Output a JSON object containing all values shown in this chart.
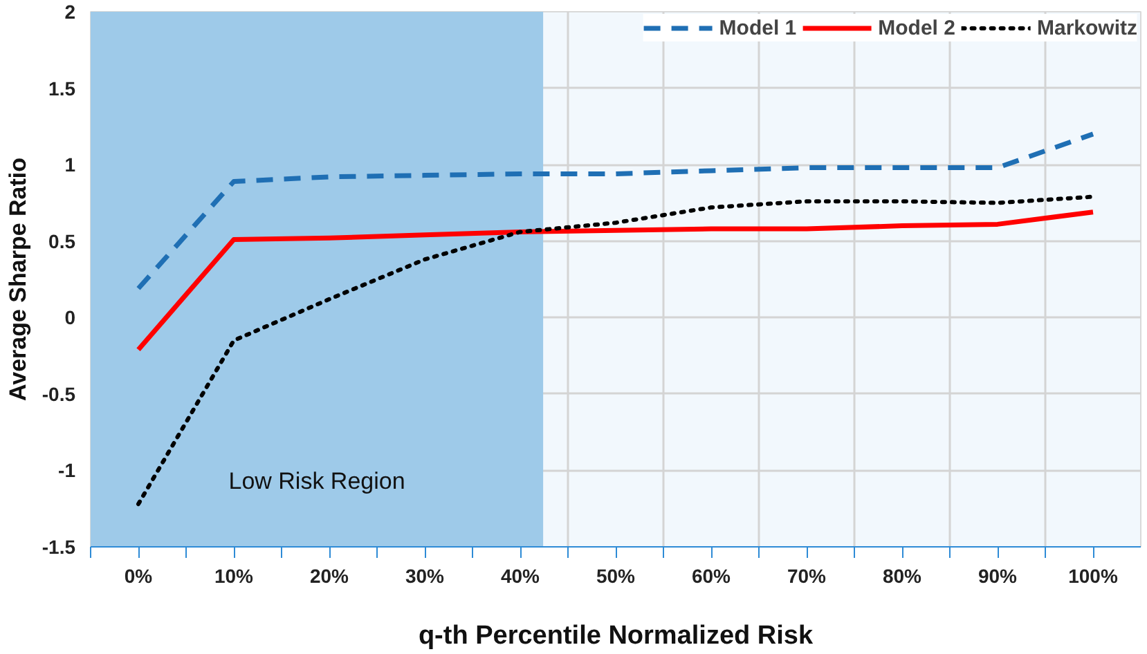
{
  "chart_data": {
    "type": "line",
    "xlabel": "q-th Percentile Normalized Risk",
    "ylabel": "Average Sharpe Ratio",
    "x": [
      0,
      10,
      20,
      30,
      40,
      50,
      60,
      70,
      80,
      90,
      100
    ],
    "xlim": [
      -5,
      105
    ],
    "xticks": [
      {
        "value": 0,
        "label": "0%"
      },
      {
        "value": 10,
        "label": "10%"
      },
      {
        "value": 20,
        "label": "20%"
      },
      {
        "value": 30,
        "label": "30%"
      },
      {
        "value": 40,
        "label": "40%"
      },
      {
        "value": 50,
        "label": "50%"
      },
      {
        "value": 60,
        "label": "60%"
      },
      {
        "value": 70,
        "label": "70%"
      },
      {
        "value": 80,
        "label": "80%"
      },
      {
        "value": 90,
        "label": "90%"
      },
      {
        "value": 100,
        "label": "100%"
      },
      {
        "value": -5,
        "label": null
      },
      {
        "value": 5,
        "label": null
      },
      {
        "value": 15,
        "label": null
      },
      {
        "value": 25,
        "label": null
      },
      {
        "value": 35,
        "label": null
      },
      {
        "value": 45,
        "label": null
      },
      {
        "value": 55,
        "label": null
      },
      {
        "value": 65,
        "label": null
      },
      {
        "value": 75,
        "label": null
      },
      {
        "value": 85,
        "label": null
      },
      {
        "value": 95,
        "label": null
      }
    ],
    "ylim": [
      -1.5,
      2
    ],
    "yticks": [
      -1.5,
      -1,
      -0.5,
      0,
      0.5,
      1,
      1.5,
      2
    ],
    "series": [
      {
        "name": "Model 1",
        "color": "#1f6fb4",
        "line_style": "dashed",
        "values": [
          0.19,
          0.89,
          0.92,
          0.93,
          0.94,
          0.94,
          0.96,
          0.98,
          0.98,
          0.98,
          1.2
        ]
      },
      {
        "name": "Model 2",
        "color": "#ff0000",
        "line_style": "solid",
        "values": [
          -0.21,
          0.51,
          0.52,
          0.54,
          0.56,
          0.57,
          0.58,
          0.58,
          0.6,
          0.61,
          0.69
        ]
      },
      {
        "name": "Markowitz",
        "color": "#000000",
        "line_style": "dotted",
        "values": [
          -1.22,
          -0.15,
          0.12,
          0.38,
          0.56,
          0.62,
          0.72,
          0.76,
          0.76,
          0.75,
          0.79
        ]
      }
    ],
    "bands": [
      {
        "axis": "x",
        "from": -5,
        "to": 42.4,
        "label": "Low Risk Region",
        "color": "#9ecae9"
      }
    ],
    "grid": true,
    "legend": "top right",
    "marker": "none"
  }
}
